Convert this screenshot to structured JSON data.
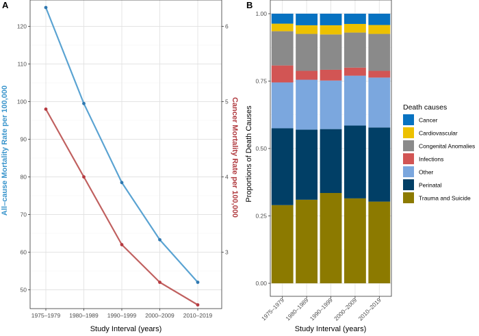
{
  "panels": {
    "a_label": "A",
    "b_label": "B"
  },
  "chart_data": [
    {
      "type": "line",
      "panel": "A",
      "categories": [
        "1975–1979",
        "1980–1989",
        "1990–1999",
        "2000–2009",
        "2010–2019"
      ],
      "xlabel": "Study Interval (years)",
      "ylabel_left": "All–cause Mortality Rate per 100,000",
      "ylabel_right": "Cancer Mortality Rate per 100,000",
      "ylim_left": [
        45,
        127
      ],
      "yticks_left": [
        50,
        60,
        70,
        80,
        90,
        100,
        110,
        120
      ],
      "yticks_right": [
        3,
        4,
        5,
        6
      ],
      "secondary_axis_ratio": 20,
      "grid": true,
      "series": [
        {
          "name": "All-cause mortality",
          "axis": "left",
          "color": "#5aa3d2",
          "values": [
            125,
            99.5,
            78.5,
            63.3,
            52
          ]
        },
        {
          "name": "Cancer mortality",
          "axis": "right",
          "color": "#c0605f",
          "values": [
            4.9,
            4.0,
            3.1,
            2.6,
            2.3
          ]
        }
      ]
    },
    {
      "type": "bar",
      "stacked": true,
      "panel": "B",
      "categories": [
        "1975–1979",
        "1980–1989",
        "1990–1999",
        "2000–2009",
        "2010–2019"
      ],
      "xlabel": "Study Interval (years)",
      "ylabel": "Proportions of Death Causes",
      "ylim": [
        0,
        1
      ],
      "yticks": [
        "0.00",
        "0.25",
        "0.50",
        "0.75",
        "1.00"
      ],
      "legend_title": "Death causes",
      "legend_position": "right",
      "series": [
        {
          "name": "Trauma and Suicide",
          "color": "#8c7a00",
          "values": [
            0.29,
            0.31,
            0.335,
            0.315,
            0.303
          ]
        },
        {
          "name": "Perinatal",
          "color": "#013f66",
          "values": [
            0.285,
            0.26,
            0.237,
            0.27,
            0.275
          ]
        },
        {
          "name": "Other",
          "color": "#7ba7de",
          "values": [
            0.17,
            0.185,
            0.18,
            0.185,
            0.185
          ]
        },
        {
          "name": "Infections",
          "color": "#d25554",
          "values": [
            0.063,
            0.033,
            0.04,
            0.03,
            0.025
          ]
        },
        {
          "name": "Congenital Anomalies",
          "color": "#8a8a8a",
          "values": [
            0.127,
            0.137,
            0.131,
            0.13,
            0.137
          ]
        },
        {
          "name": "Cardiovascular",
          "color": "#edc100",
          "values": [
            0.028,
            0.032,
            0.034,
            0.032,
            0.033
          ]
        },
        {
          "name": "Cancer",
          "color": "#0772c1",
          "values": [
            0.037,
            0.043,
            0.043,
            0.038,
            0.042
          ]
        }
      ],
      "legend_order": [
        "Cancer",
        "Cardiovascular",
        "Congenital Anomalies",
        "Infections",
        "Other",
        "Perinatal",
        "Trauma and Suicide"
      ]
    }
  ]
}
